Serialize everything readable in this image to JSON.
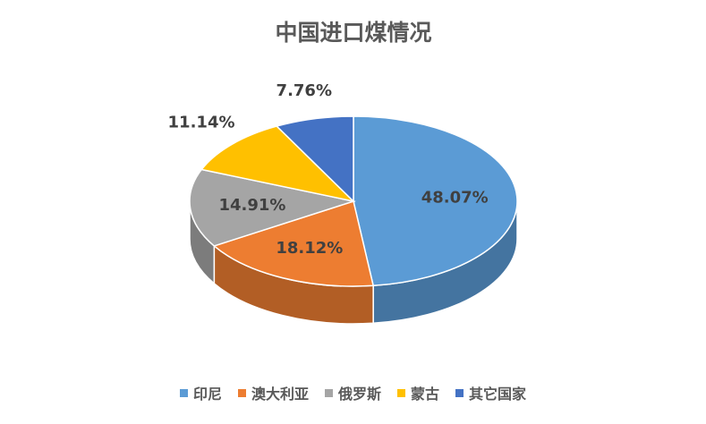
{
  "chart_data": {
    "type": "pie",
    "title": "中国进口煤情况",
    "categories": [
      "印尼",
      "澳大利亚",
      "俄罗斯",
      "蒙古",
      "其它国家"
    ],
    "values": [
      48.07,
      18.12,
      14.91,
      11.14,
      7.76
    ],
    "value_labels": [
      "48.07%",
      "18.12%",
      "14.91%",
      "11.14%",
      "7.76%"
    ],
    "colors": [
      "#5b9bd5",
      "#ed7d31",
      "#a5a5a5",
      "#ffc000",
      "#4472c4"
    ],
    "legend": "bottom"
  }
}
